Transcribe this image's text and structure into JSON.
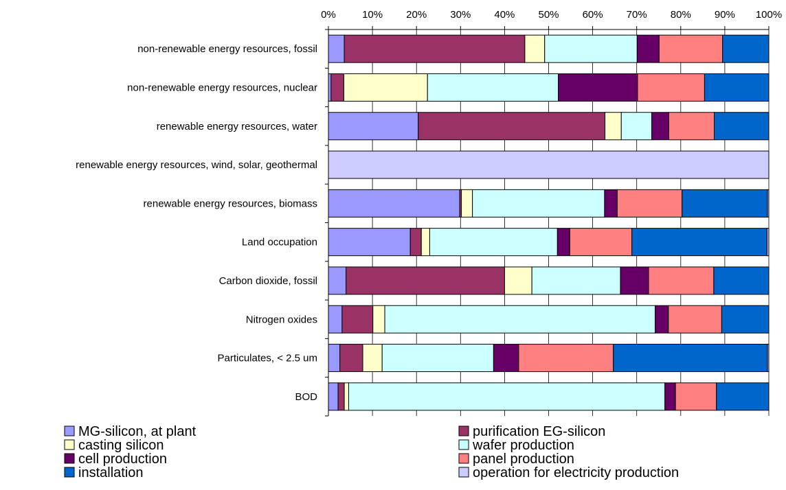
{
  "chart_data": {
    "type": "bar",
    "orientation": "horizontal",
    "stacked": "percent",
    "title": "",
    "xlabel": "",
    "ylabel": "",
    "xlim": [
      0,
      100
    ],
    "x_ticks": [
      "0%",
      "10%",
      "20%",
      "30%",
      "40%",
      "50%",
      "60%",
      "70%",
      "80%",
      "90%",
      "100%"
    ],
    "x_axis_position": "top",
    "grid": true,
    "legend_position": "bottom",
    "categories": [
      "non-renewable energy resources, fossil",
      "non-renewable energy resources, nuclear",
      "renewable energy resources, water",
      "renewable energy resources, wind, solar, geothermal",
      "renewable energy resources, biomass",
      "Land occupation",
      "Carbon dioxide, fossil",
      "Nitrogen oxides",
      "Particulates, < 2.5 um",
      "BOD"
    ],
    "series": [
      {
        "name": "MG-silicon, at plant",
        "color": "#9999ff",
        "values": [
          3.6,
          0.6,
          20.4,
          0,
          29.8,
          18.6,
          4.0,
          3.1,
          2.6,
          2.2
        ]
      },
      {
        "name": "purification EG-silicon",
        "color": "#993366",
        "values": [
          41.0,
          2.9,
          42.4,
          0,
          0.4,
          2.5,
          36.0,
          7.0,
          5.2,
          1.4
        ]
      },
      {
        "name": "casting silicon",
        "color": "#ffffcc",
        "values": [
          4.5,
          19.0,
          3.7,
          0,
          2.5,
          1.9,
          6.2,
          2.7,
          4.4,
          1.0
        ]
      },
      {
        "name": "wafer production",
        "color": "#ccffff",
        "values": [
          21.0,
          29.7,
          6.9,
          0,
          30.0,
          29.0,
          20.1,
          61.4,
          25.3,
          71.8
        ]
      },
      {
        "name": "cell production",
        "color": "#660066",
        "values": [
          5.0,
          18.0,
          3.9,
          0,
          2.9,
          2.8,
          6.4,
          3.0,
          5.7,
          2.4
        ]
      },
      {
        "name": "panel production",
        "color": "#ff8080",
        "values": [
          14.4,
          15.2,
          10.3,
          0,
          14.7,
          14.1,
          14.8,
          12.1,
          21.5,
          9.3
        ]
      },
      {
        "name": "installation",
        "color": "#0066cc",
        "values": [
          10.5,
          14.6,
          12.4,
          0,
          19.4,
          30.7,
          12.5,
          10.7,
          35.0,
          11.9
        ]
      },
      {
        "name": "operation for electricity production",
        "color": "#ccccff",
        "values": [
          0,
          0,
          0,
          100,
          0.3,
          0.4,
          0,
          0,
          0.3,
          0
        ]
      }
    ]
  }
}
